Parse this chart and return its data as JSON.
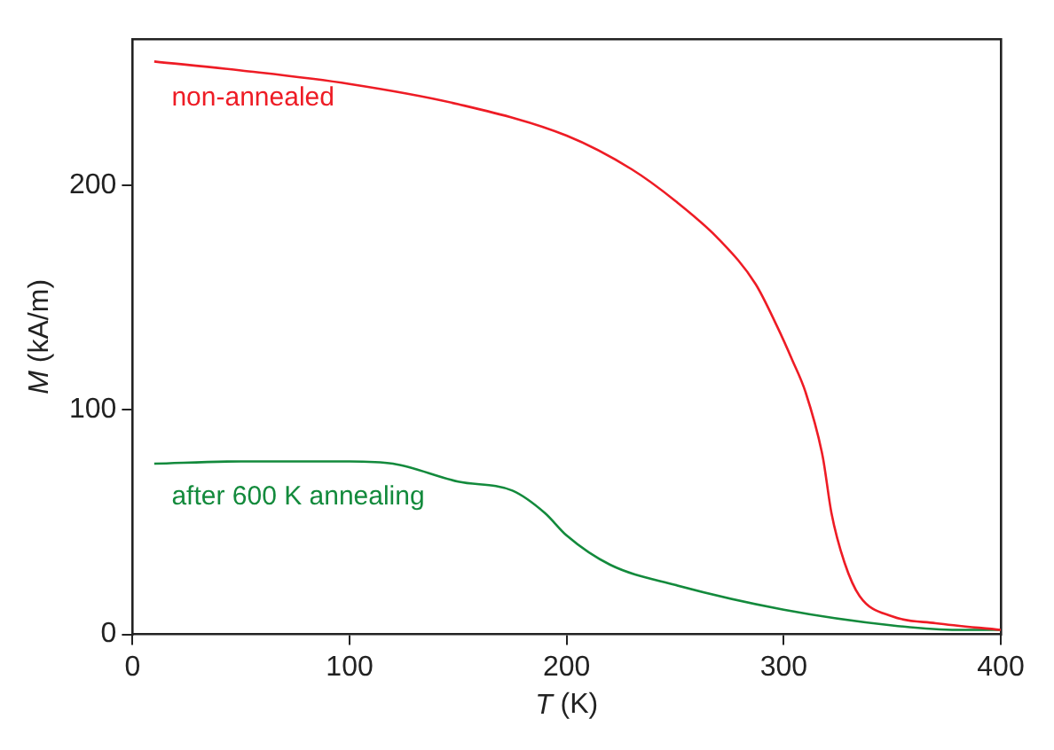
{
  "chart_data": {
    "type": "line",
    "xlabel": "T (K)",
    "ylabel": "M (kA/m)",
    "xlim": [
      0,
      400
    ],
    "xticks": [
      0,
      100,
      200,
      300,
      400
    ],
    "ylim": [
      0,
      265
    ],
    "yticks": [
      0,
      100,
      200
    ],
    "grid": false,
    "legend": false,
    "marker": "none",
    "line_style": "solid",
    "series": [
      {
        "name": "non-annealed",
        "color": "#ee1c25",
        "x": [
          10,
          50,
          100,
          150,
          200,
          230,
          250,
          270,
          287,
          297,
          304,
          310,
          318,
          322,
          328,
          335,
          350,
          370,
          400
        ],
        "values": [
          255,
          251,
          245,
          236,
          222,
          207,
          193,
          176,
          156,
          137,
          122,
          108,
          79,
          54,
          32,
          17,
          8,
          5,
          2
        ]
      },
      {
        "name": "after 600 K annealing",
        "color": "#138a3c",
        "x": [
          10,
          50,
          100,
          120,
          150,
          175,
          190,
          200,
          220,
          250,
          300,
          350,
          380,
          400
        ],
        "values": [
          76,
          77,
          77,
          76,
          68,
          64,
          54,
          44,
          31,
          22,
          11,
          4,
          2,
          2
        ]
      }
    ]
  }
}
